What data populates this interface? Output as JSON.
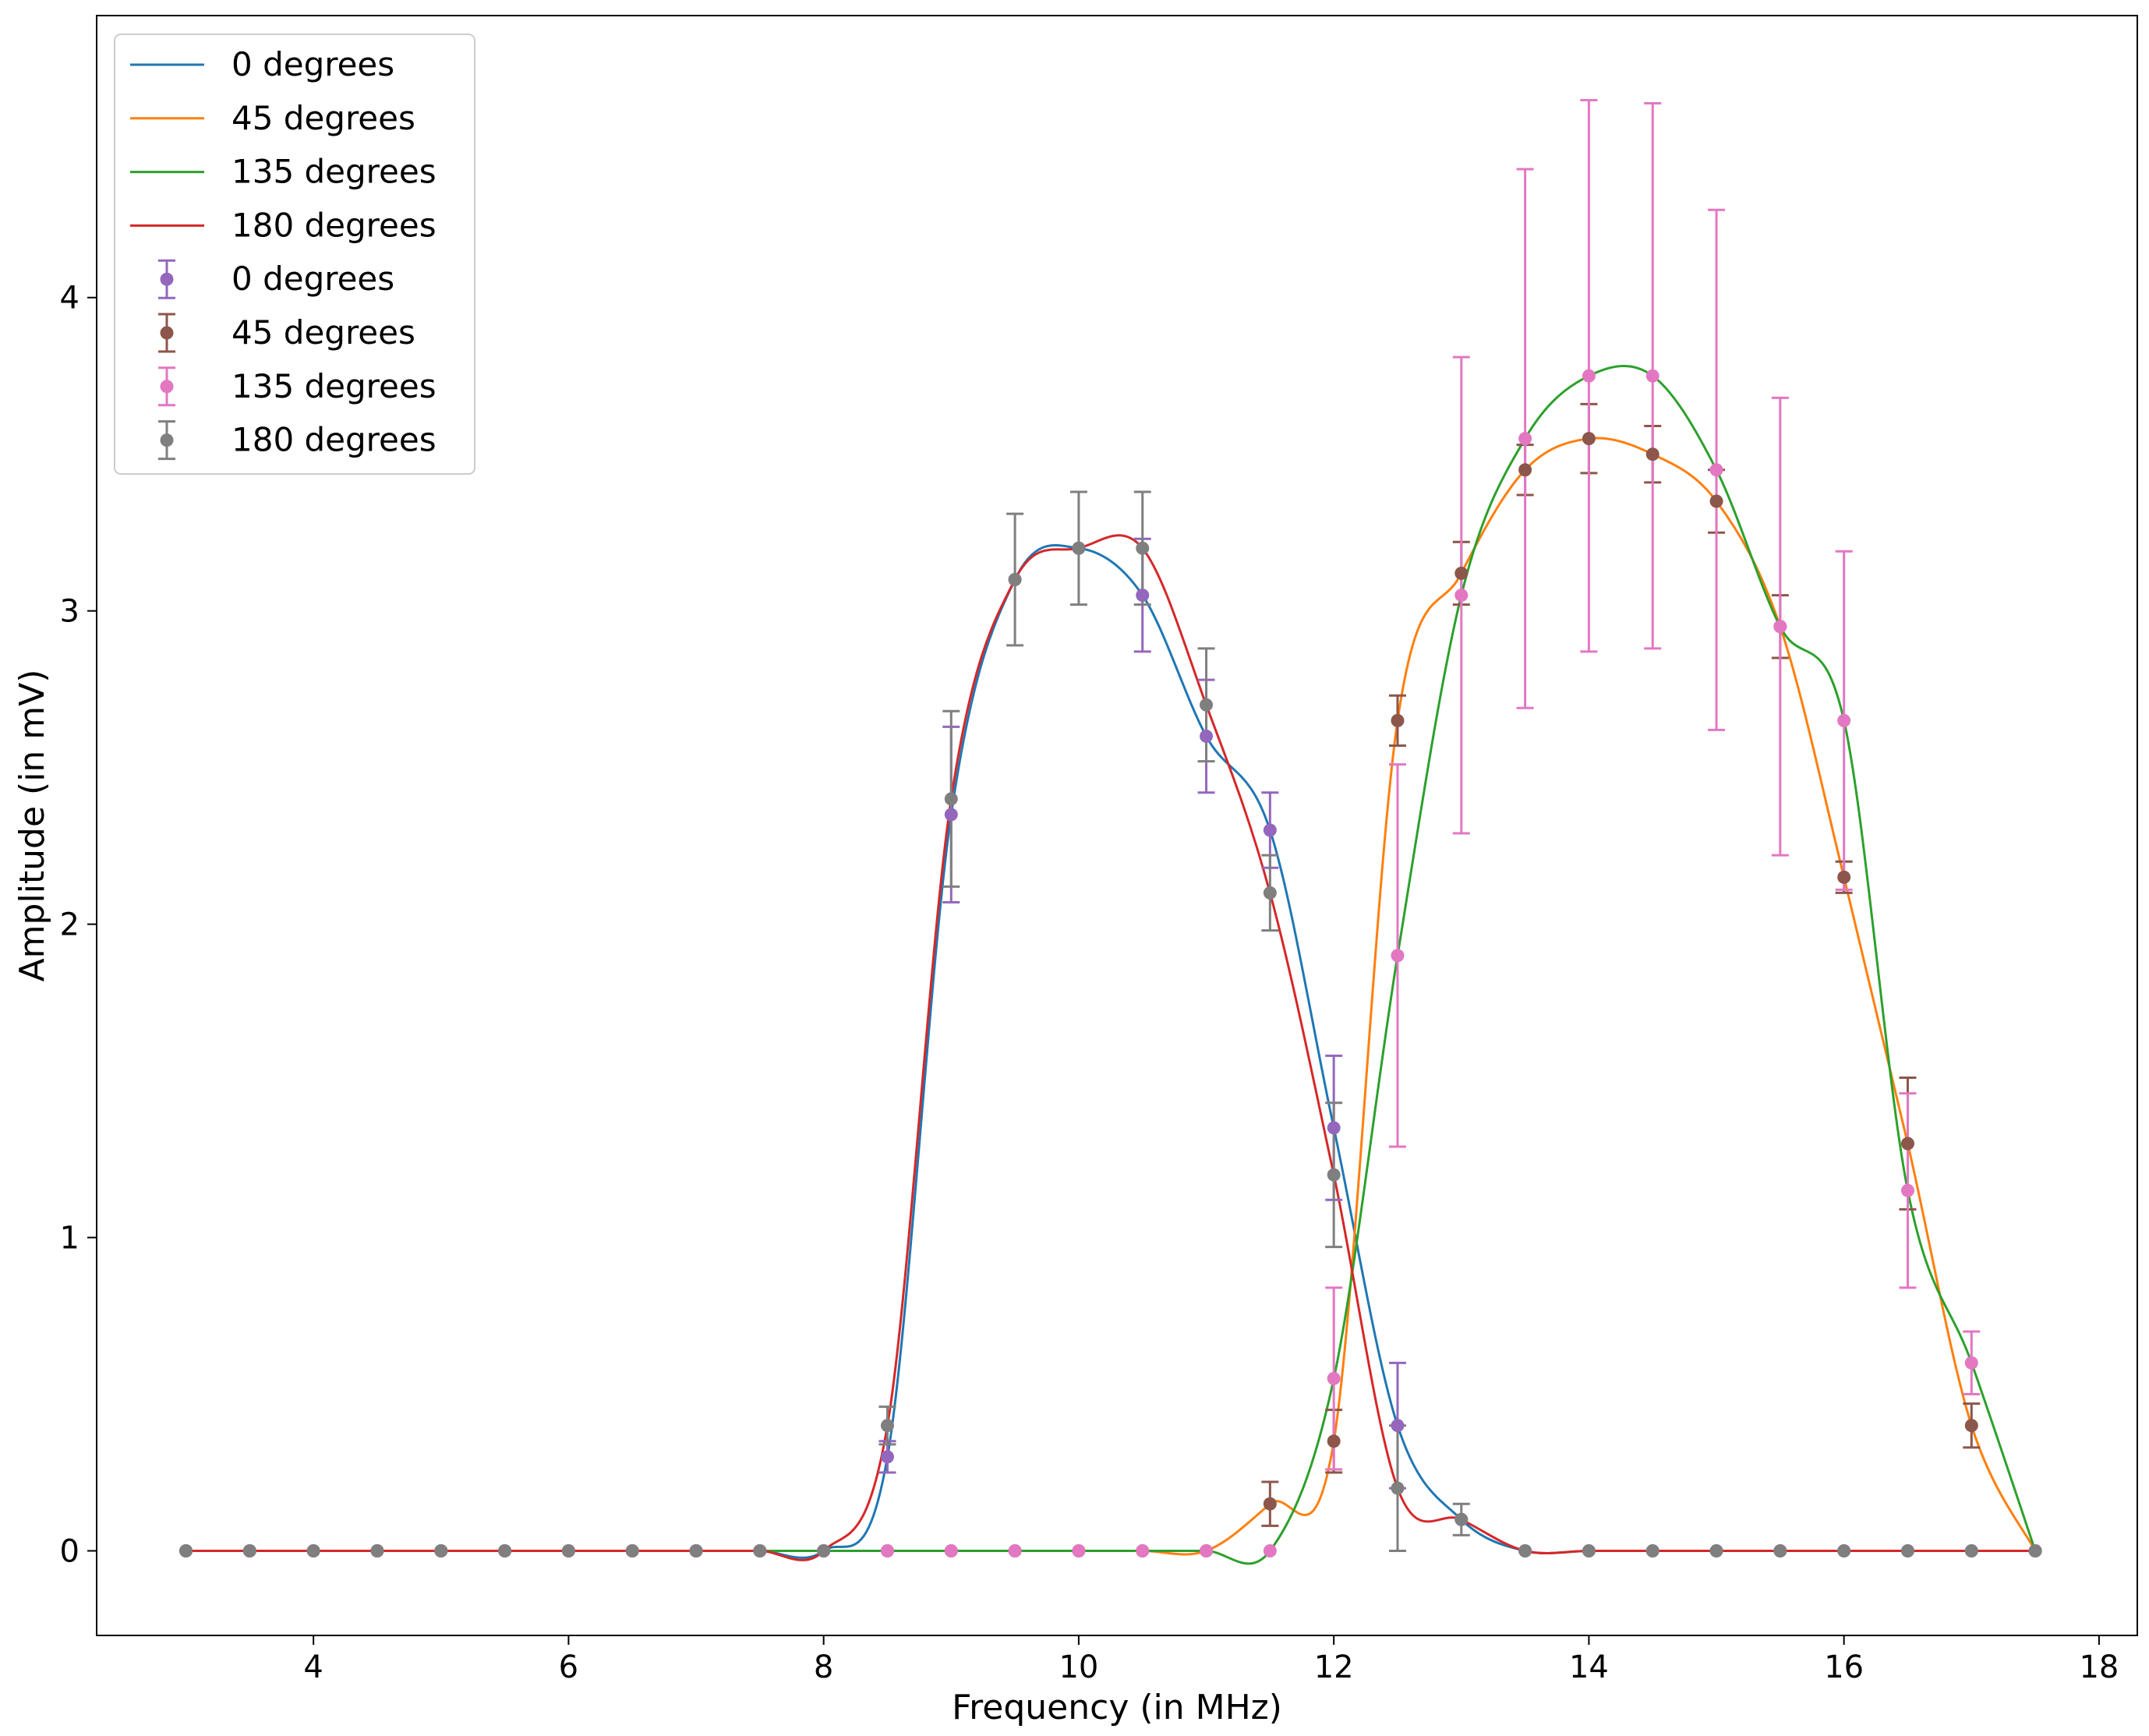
{
  "chart_data": {
    "type": "line",
    "xlabel": "Frequency (in MHz)",
    "ylabel": "Amplitude (in mV)",
    "xlim": [
      2.3,
      18.3
    ],
    "ylim": [
      -0.27,
      4.9
    ],
    "xticks": [
      4,
      6,
      8,
      10,
      12,
      14,
      16,
      18
    ],
    "yticks": [
      0,
      1,
      2,
      3,
      4
    ],
    "grid": false,
    "legend_position": "top-left",
    "x": [
      3,
      3.5,
      4,
      4.5,
      5,
      5.5,
      6,
      6.5,
      7,
      7.5,
      8,
      8.5,
      9,
      9.5,
      10,
      10.5,
      11,
      11.5,
      12,
      12.5,
      13,
      13.5,
      14,
      14.5,
      15,
      15.5,
      16,
      16.5,
      17,
      17.5
    ],
    "series": [
      {
        "name": "0 degrees",
        "line_color": "#1f77b4",
        "marker_color": "#9467bd",
        "values": [
          0,
          0,
          0,
          0,
          0,
          0,
          0,
          0,
          0,
          0,
          0,
          0.3,
          2.35,
          3.1,
          3.2,
          3.05,
          2.6,
          2.3,
          1.35,
          0.4,
          0.1,
          0,
          0,
          0,
          0,
          0,
          0,
          0,
          0,
          0
        ],
        "errors": [
          0,
          0,
          0,
          0,
          0,
          0,
          0,
          0,
          0,
          0,
          0,
          0.05,
          0.28,
          0,
          0,
          0.18,
          0.18,
          0.12,
          0.23,
          0.2,
          0,
          0,
          0,
          0,
          0,
          0,
          0,
          0,
          0,
          0
        ]
      },
      {
        "name": "45 degrees",
        "line_color": "#ff7f0e",
        "marker_color": "#8c564b",
        "values": [
          0,
          0,
          0,
          0,
          0,
          0,
          0,
          0,
          0,
          0,
          0,
          0,
          0,
          0,
          0,
          0,
          0,
          0.15,
          0.35,
          2.65,
          3.12,
          3.45,
          3.55,
          3.5,
          3.35,
          2.95,
          2.15,
          1.3,
          0.4,
          0
        ],
        "errors": [
          0,
          0,
          0,
          0,
          0,
          0,
          0,
          0,
          0,
          0,
          0,
          0,
          0,
          0,
          0,
          0,
          0,
          0.07,
          0.1,
          0.08,
          0.1,
          0.08,
          0.11,
          0.09,
          0.1,
          0.1,
          0.05,
          0.21,
          0.07,
          0
        ]
      },
      {
        "name": "135 degrees",
        "line_color": "#2ca02c",
        "marker_color": "#e377c2",
        "values": [
          0,
          0,
          0,
          0,
          0,
          0,
          0,
          0,
          0,
          0,
          0,
          0,
          0,
          0,
          0,
          0,
          0,
          0,
          0.55,
          1.9,
          3.05,
          3.55,
          3.75,
          3.75,
          3.45,
          2.95,
          2.65,
          1.15,
          0.6,
          0
        ],
        "errors": [
          0,
          0,
          0,
          0,
          0,
          0,
          0,
          0,
          0,
          0,
          0,
          0,
          0,
          0,
          0,
          0,
          0,
          0,
          0.29,
          0.61,
          0.76,
          0.86,
          0.88,
          0.87,
          0.83,
          0.73,
          0.54,
          0.31,
          0.1,
          0
        ]
      },
      {
        "name": "180 degrees",
        "line_color": "#d62728",
        "marker_color": "#7f7f7f",
        "values": [
          0,
          0,
          0,
          0,
          0,
          0,
          0,
          0,
          0,
          0,
          0,
          0.4,
          2.4,
          3.1,
          3.2,
          3.2,
          2.7,
          2.1,
          1.2,
          0.2,
          0.1,
          0,
          0,
          0,
          0,
          0,
          0,
          0,
          0,
          0
        ],
        "errors": [
          0,
          0,
          0,
          0,
          0,
          0,
          0,
          0,
          0,
          0,
          0,
          0.06,
          0.28,
          0.21,
          0.18,
          0.18,
          0.18,
          0.12,
          0.23,
          0.2,
          0.05,
          0,
          0,
          0,
          0,
          0,
          0,
          0,
          0,
          0
        ]
      }
    ]
  }
}
